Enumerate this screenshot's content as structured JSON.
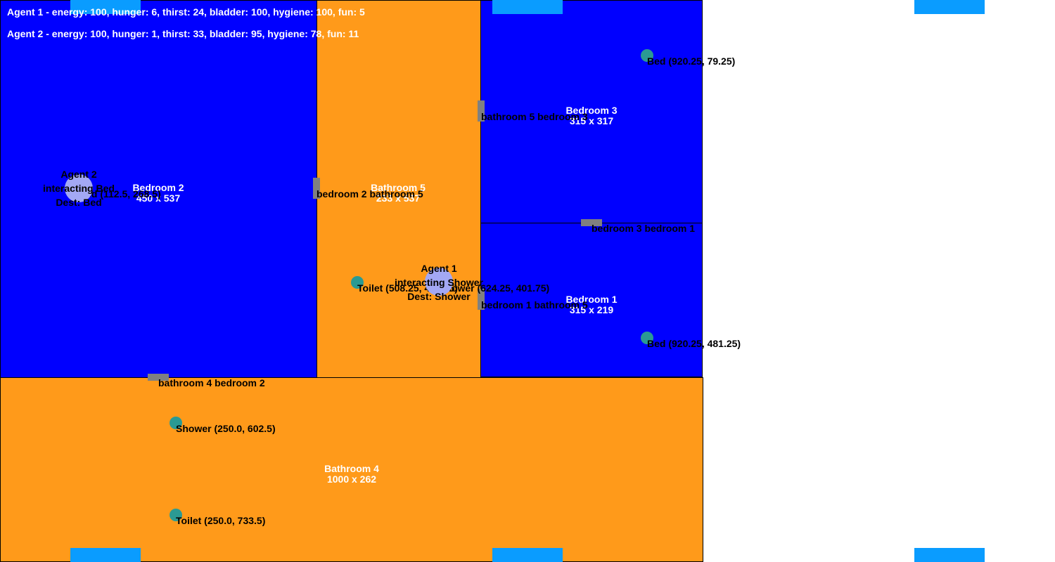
{
  "status": {
    "agent1": "Agent 1 - energy: 100, hunger: 6, thirst: 24, bladder: 100, hygiene: 100, fun: 5",
    "agent2": "Agent 2 - energy: 100, hunger: 1, thirst: 33, bladder: 95, hygiene: 78, fun: 11"
  },
  "colors": {
    "bedroom": "#0000ff",
    "bathroom": "#ff9a1a",
    "door": "#808080",
    "object": "#2b9a93",
    "agent": "#a3a8f5",
    "window": "#0a9cff"
  },
  "rooms": {
    "bedroom2": {
      "name": "Bedroom 2",
      "size": "450 x 537"
    },
    "bathroom5": {
      "name": "Bathroom 5",
      "size": "233 x 537"
    },
    "bedroom3": {
      "name": "Bedroom 3",
      "size": "315 x 317"
    },
    "bedroom1": {
      "name": "Bedroom 1",
      "size": "315 x 219"
    },
    "bathroom4": {
      "name": "Bathroom 4",
      "size": "1000 x 262"
    }
  },
  "doors": {
    "b2_ba5": "bedroom 2 bathroom 5",
    "ba5_b3": "bathroom 5 bedroom 3",
    "b3_b1": "bedroom 3 bedroom 1",
    "b1_ba5": "bedroom 1 bathroom 5",
    "ba4_b2": "bathroom 4 bedroom 2"
  },
  "objects": {
    "bed_b3": "Bed (920.25, 79.25)",
    "bed_b1": "Bed (920.25, 481.25)",
    "bed_b2": "Bed (112.5, 268.5)",
    "toilet_ba5": "Toilet (508.25, 401.75)",
    "shower_ba5": "Shower (624.25, 401.75)",
    "shower_ba4": "Shower (250.0, 602.5)",
    "toilet_ba4": "Toilet (250.0, 733.5)"
  },
  "agents": {
    "agent1": {
      "name": "Agent 1",
      "interaction": "interacting Shower",
      "dest": "Dest: Shower"
    },
    "agent2": {
      "name": "Agent 2",
      "interaction": "interacting Bed",
      "dest": "Dest: Bed"
    }
  }
}
